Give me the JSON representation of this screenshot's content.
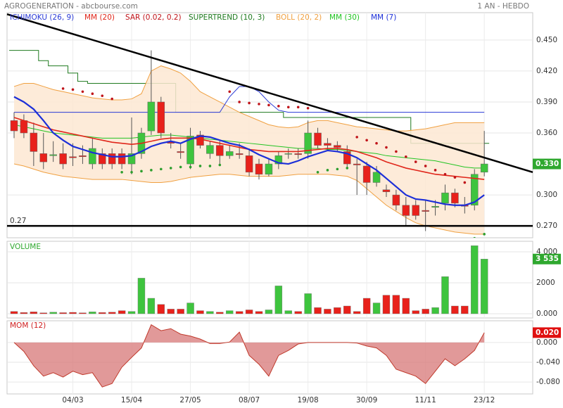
{
  "chart_data": {
    "type": "candlestick",
    "title": "AGROGENERATION - abcbourse.com",
    "period": "1 AN - HEBDO",
    "categories": [
      null,
      null,
      null,
      null,
      null,
      null,
      "04/03",
      null,
      null,
      null,
      null,
      null,
      "15/04",
      null,
      null,
      null,
      null,
      null,
      "27/05",
      null,
      null,
      null,
      null,
      null,
      "08/07",
      null,
      null,
      null,
      null,
      null,
      "19/08",
      null,
      null,
      null,
      null,
      null,
      "30/09",
      null,
      null,
      null,
      null,
      null,
      "11/11",
      null,
      null,
      null,
      null,
      null,
      "23/12"
    ],
    "open": [
      0.372,
      0.372,
      0.36,
      0.34,
      0.338,
      0.34,
      0.337,
      0.338,
      0.33,
      0.34,
      0.34,
      0.34,
      0.33,
      0.34,
      0.362,
      0.39,
      0.352,
      0.342,
      0.33,
      0.358,
      0.34,
      0.348,
      0.338,
      0.34,
      0.338,
      0.33,
      0.32,
      0.33,
      0.34,
      0.34,
      0.34,
      0.36,
      0.35,
      0.348,
      0.342,
      0.33,
      0.328,
      0.312,
      0.305,
      0.3,
      0.29,
      0.29,
      0.285,
      0.288,
      0.292,
      0.302,
      0.29,
      0.29,
      0.322
    ],
    "high": [
      0.38,
      0.378,
      0.37,
      0.36,
      0.352,
      0.35,
      0.35,
      0.348,
      0.355,
      0.345,
      0.345,
      0.345,
      0.375,
      0.365,
      0.44,
      0.395,
      0.36,
      0.35,
      0.365,
      0.362,
      0.352,
      0.352,
      0.348,
      0.35,
      0.345,
      0.335,
      0.335,
      0.342,
      0.345,
      0.345,
      0.372,
      0.365,
      0.355,
      0.352,
      0.348,
      0.335,
      0.332,
      0.328,
      0.31,
      0.305,
      0.298,
      0.295,
      0.295,
      0.295,
      0.31,
      0.306,
      0.298,
      0.325,
      0.362
    ],
    "low": [
      0.355,
      0.355,
      0.328,
      0.325,
      0.332,
      0.325,
      0.328,
      0.33,
      0.325,
      0.325,
      0.325,
      0.325,
      0.32,
      0.335,
      0.358,
      0.355,
      0.345,
      0.335,
      0.325,
      0.345,
      0.335,
      0.33,
      0.335,
      0.335,
      0.318,
      0.315,
      0.318,
      0.325,
      0.335,
      0.335,
      0.335,
      0.345,
      0.343,
      0.342,
      0.325,
      0.3,
      0.3,
      0.308,
      0.298,
      0.285,
      0.27,
      0.276,
      0.265,
      0.28,
      0.285,
      0.288,
      0.282,
      0.285,
      0.318
    ],
    "close": [
      0.362,
      0.36,
      0.342,
      0.332,
      0.339,
      0.33,
      0.336,
      0.337,
      0.345,
      0.33,
      0.33,
      0.33,
      0.34,
      0.36,
      0.39,
      0.36,
      0.35,
      0.341,
      0.357,
      0.348,
      0.348,
      0.338,
      0.342,
      0.339,
      0.322,
      0.32,
      0.33,
      0.338,
      0.34,
      0.339,
      0.36,
      0.348,
      0.348,
      0.346,
      0.33,
      0.329,
      0.312,
      0.322,
      0.303,
      0.29,
      0.28,
      0.28,
      0.284,
      0.289,
      0.302,
      0.292,
      0.289,
      0.32,
      0.33
    ],
    "up_color": "#3ec43e",
    "down_color": "#e8211b",
    "ylim": [
      0.2585,
      0.4765
    ],
    "yticks": [
      {
        "value": 0.27,
        "label": "0.270"
      },
      {
        "value": 0.3,
        "label": "0.300"
      },
      {
        "value": 0.36,
        "label": "0.360"
      },
      {
        "value": 0.39,
        "label": "0.390"
      },
      {
        "value": 0.42,
        "label": "0.420"
      },
      {
        "value": 0.45,
        "label": "0.450"
      }
    ],
    "grid": true,
    "last_value": {
      "value": 0.33,
      "label": "0.330",
      "color": "#2fa82f"
    },
    "overlays": [
      {
        "name": "ICHIMOKU (26, 9)",
        "color": "#2a3ad6",
        "style": "line",
        "values": [
          0.38,
          0.38,
          0.38,
          0.38,
          0.38,
          0.38,
          0.38,
          0.38,
          0.38,
          0.38,
          0.38,
          0.38,
          0.38,
          0.38,
          0.38,
          0.38,
          0.38,
          0.38,
          0.38,
          0.38,
          0.38,
          0.38,
          0.395,
          0.405,
          0.405,
          0.4,
          0.39,
          0.382,
          0.38,
          0.38,
          0.38,
          0.38,
          0.38,
          0.38,
          0.38,
          0.38,
          0.38,
          0.38,
          0.38,
          0.38,
          0.38,
          0.38,
          0.38,
          0.38,
          0.38,
          0.38,
          0.38,
          0.38,
          0.38
        ]
      },
      {
        "name": "MM (20)",
        "color": "#e0261a",
        "style": "line",
        "width": 1.6,
        "values": [
          0.375,
          0.372,
          0.369,
          0.366,
          0.363,
          0.361,
          0.359,
          0.357,
          0.355,
          0.353,
          0.351,
          0.35,
          0.349,
          0.35,
          0.352,
          0.354,
          0.355,
          0.355,
          0.355,
          0.354,
          0.352,
          0.35,
          0.348,
          0.346,
          0.344,
          0.343,
          0.342,
          0.342,
          0.342,
          0.342,
          0.343,
          0.344,
          0.345,
          0.345,
          0.344,
          0.342,
          0.339,
          0.336,
          0.332,
          0.329,
          0.326,
          0.324,
          0.322,
          0.32,
          0.319,
          0.318,
          0.317,
          0.316,
          0.315
        ]
      },
      {
        "name": "SAR (0.02, 0.2)",
        "color": "#c0141a",
        "color_below": "#2e9e2e",
        "style": "dots",
        "values": [
          null,
          null,
          null,
          null,
          null,
          0.403,
          0.402,
          0.4,
          0.398,
          0.396,
          0.393,
          0.322,
          0.322,
          0.323,
          0.324,
          0.325,
          0.326,
          0.327,
          0.327,
          0.328,
          0.328,
          0.329,
          0.4,
          0.39,
          0.389,
          0.388,
          0.387,
          0.386,
          0.385,
          0.385,
          0.384,
          0.322,
          0.324,
          0.325,
          0.326,
          0.356,
          0.353,
          0.35,
          0.346,
          0.342,
          0.337,
          0.332,
          0.328,
          0.324,
          0.32,
          0.317,
          0.312,
          0.258,
          0.262
        ]
      },
      {
        "name": "SUPERTREND (10, 3)",
        "color": "#1f7a1f",
        "style": "step",
        "values": [
          0.44,
          0.44,
          0.44,
          0.43,
          0.425,
          0.425,
          0.418,
          0.41,
          0.408,
          0.408,
          0.408,
          0.408,
          0.408,
          0.408,
          0.408,
          0.408,
          0.408,
          0.38,
          0.38,
          0.38,
          0.38,
          0.38,
          0.38,
          0.38,
          0.38,
          0.38,
          0.38,
          0.38,
          0.375,
          0.375,
          0.375,
          0.375,
          0.375,
          0.375,
          0.375,
          0.375,
          0.375,
          0.375,
          0.375,
          0.375,
          0.375,
          0.35,
          0.35,
          0.35,
          0.35,
          0.35,
          0.35,
          0.35,
          0.35
        ]
      },
      {
        "name": "BOLL (20, 2)",
        "color": "#f0a040",
        "fill": "#fde8d2",
        "style": "band",
        "upper": [
          0.405,
          0.408,
          0.408,
          0.405,
          0.402,
          0.4,
          0.398,
          0.396,
          0.394,
          0.393,
          0.392,
          0.392,
          0.393,
          0.398,
          0.42,
          0.425,
          0.422,
          0.418,
          0.41,
          0.4,
          0.395,
          0.39,
          0.385,
          0.38,
          0.376,
          0.372,
          0.368,
          0.366,
          0.365,
          0.366,
          0.37,
          0.372,
          0.372,
          0.37,
          0.368,
          0.366,
          0.365,
          0.364,
          0.363,
          0.362,
          0.362,
          0.363,
          0.364,
          0.366,
          0.368,
          0.37,
          0.37,
          0.37,
          0.37
        ],
        "lower": [
          0.33,
          0.328,
          0.325,
          0.322,
          0.32,
          0.318,
          0.317,
          0.316,
          0.315,
          0.315,
          0.315,
          0.315,
          0.314,
          0.313,
          0.312,
          0.312,
          0.313,
          0.315,
          0.317,
          0.318,
          0.319,
          0.32,
          0.32,
          0.319,
          0.318,
          0.318,
          0.318,
          0.318,
          0.319,
          0.32,
          0.32,
          0.32,
          0.32,
          0.319,
          0.318,
          0.314,
          0.306,
          0.298,
          0.29,
          0.284,
          0.278,
          0.273,
          0.27,
          0.268,
          0.266,
          0.264,
          0.263,
          0.262,
          0.262
        ]
      },
      {
        "name": "MM (30)",
        "color": "#22c422",
        "style": "line",
        "values": [
          0.368,
          0.366,
          0.364,
          0.362,
          0.36,
          0.359,
          0.358,
          0.357,
          0.356,
          0.355,
          0.355,
          0.355,
          0.355,
          0.356,
          0.357,
          0.358,
          0.358,
          0.357,
          0.356,
          0.355,
          0.354,
          0.353,
          0.352,
          0.351,
          0.35,
          0.349,
          0.348,
          0.347,
          0.346,
          0.345,
          0.345,
          0.345,
          0.344,
          0.344,
          0.343,
          0.342,
          0.341,
          0.34,
          0.338,
          0.337,
          0.336,
          0.335,
          0.334,
          0.333,
          0.331,
          0.329,
          0.327,
          0.326,
          0.326
        ]
      },
      {
        "name": "MM (7)",
        "color": "#1c2fd8",
        "style": "line",
        "width": 2.2,
        "values": [
          0.395,
          0.39,
          0.383,
          0.372,
          0.36,
          0.353,
          0.347,
          0.344,
          0.341,
          0.339,
          0.337,
          0.337,
          0.338,
          0.342,
          0.347,
          0.35,
          0.352,
          0.35,
          0.354,
          0.357,
          0.356,
          0.353,
          0.35,
          0.348,
          0.344,
          0.339,
          0.335,
          0.331,
          0.33,
          0.333,
          0.337,
          0.34,
          0.343,
          0.342,
          0.34,
          0.336,
          0.33,
          0.324,
          0.316,
          0.308,
          0.3,
          0.296,
          0.295,
          0.293,
          0.291,
          0.29,
          0.29,
          0.293,
          0.3
        ]
      }
    ],
    "trendline": {
      "values": [
        0.475,
        0.322
      ],
      "color": "#000000"
    },
    "hline": {
      "value": 0.27,
      "label": "0.27",
      "color": "#000000"
    },
    "volume": {
      "title": "VOLUME",
      "title_color": "#2fa82f",
      "values": [
        150,
        80,
        120,
        60,
        100,
        70,
        90,
        60,
        120,
        80,
        100,
        200,
        150,
        2300,
        1000,
        600,
        300,
        300,
        700,
        200,
        150,
        100,
        200,
        150,
        250,
        150,
        250,
        1800,
        200,
        150,
        1300,
        400,
        300,
        400,
        500,
        150,
        1000,
        700,
        1200,
        1200,
        1000,
        200,
        300,
        400,
        2400,
        500,
        500,
        4400,
        3535
      ],
      "ylim": [
        -273,
        4682
      ],
      "yticks": [
        {
          "value": 0,
          "label": "0.000"
        },
        2000,
        {
          "value": 4000,
          "label": "4 000"
        }
      ],
      "last_value": {
        "value": 3535,
        "label": "3 535",
        "color": "#2fa82f"
      }
    },
    "momentum": {
      "title": "MOM (12)",
      "title_color": "#d02020",
      "color": "#c0392b",
      "fill": "#d98080",
      "values": [
        0,
        -0.018,
        -0.047,
        -0.068,
        -0.061,
        -0.07,
        -0.058,
        -0.065,
        -0.061,
        -0.09,
        -0.083,
        -0.05,
        -0.03,
        -0.011,
        0.036,
        0.024,
        0.028,
        0.017,
        0.013,
        0.007,
        -0.002,
        -0.002,
        0.001,
        0.021,
        -0.026,
        -0.044,
        -0.068,
        -0.026,
        -0.016,
        -0.003,
        0,
        0,
        0,
        0,
        0,
        -0.001,
        -0.007,
        -0.011,
        -0.026,
        -0.054,
        -0.061,
        -0.068,
        -0.083,
        -0.058,
        -0.033,
        -0.047,
        -0.033,
        -0.016,
        0.02
      ],
      "ylim": [
        -0.104,
        0.044
      ],
      "yticks": [
        {
          "value": -0.08,
          "label": "-0.080"
        },
        {
          "value": -0.04,
          "label": "-0.040"
        },
        {
          "value": 0,
          "label": "0.000"
        }
      ],
      "last_value": {
        "value": 0.02,
        "label": "0.020",
        "color": "#e01010"
      }
    }
  }
}
